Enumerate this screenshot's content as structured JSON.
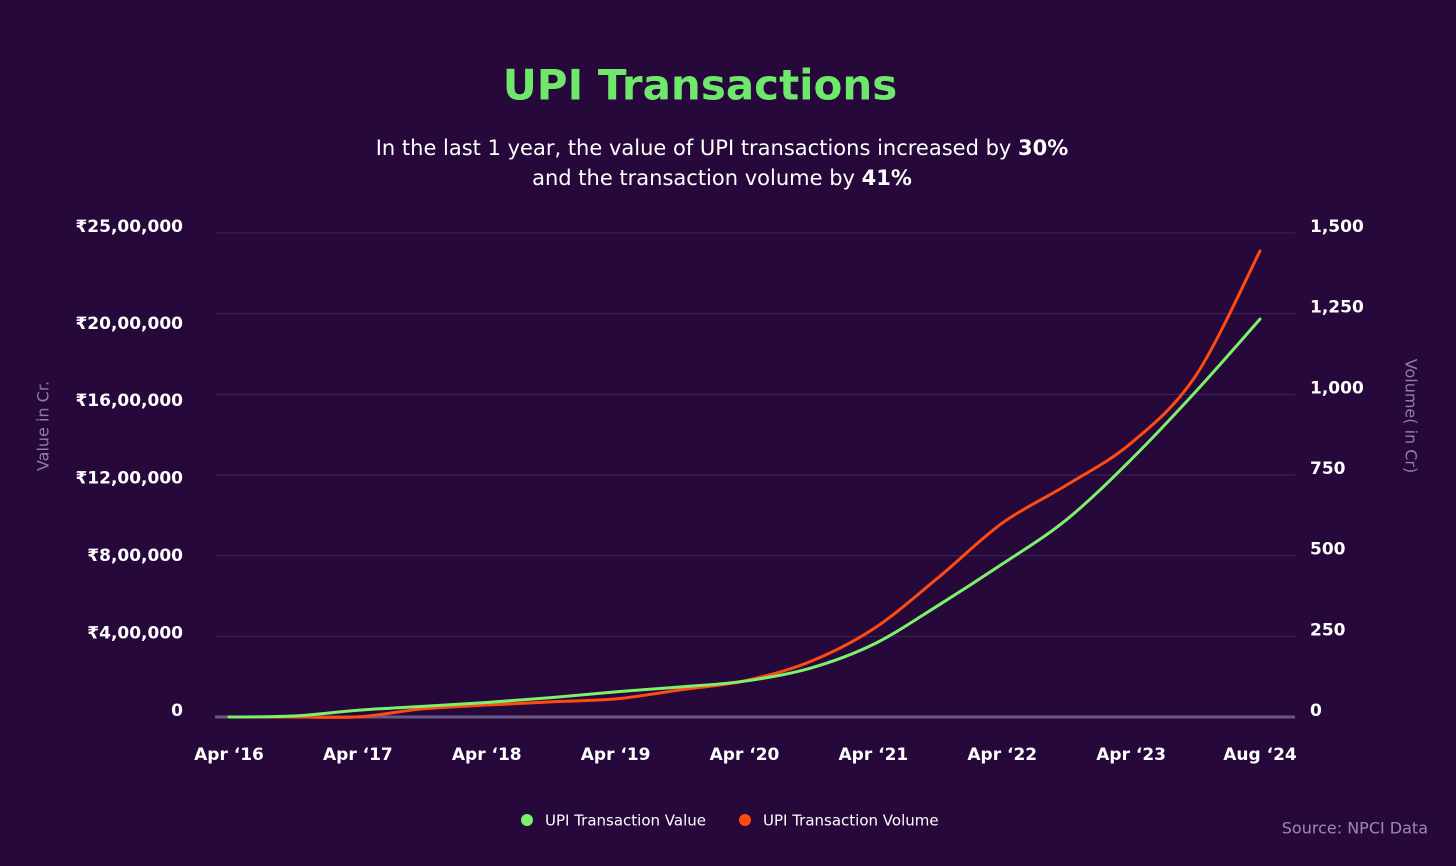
{
  "chart_data": {
    "type": "line",
    "title": "UPI Transactions",
    "subtitle": [
      "In the last 1 year, the  value of UPI  transactions increased by ",
      "30%",
      "and the transaction volume by ",
      "41%"
    ],
    "y_label": "Value in Cr.",
    "y2_label": "Volume( in Cr)",
    "source": "Source: NPCI Data",
    "categories": [
      "Apr ‘16",
      null,
      "Apr ‘17",
      null,
      "Apr ‘18",
      null,
      "Apr ‘19",
      null,
      "Apr ‘20",
      null,
      "Apr ‘21",
      null,
      "Apr ‘22",
      null,
      "Apr ‘23",
      null,
      "Aug ‘24"
    ],
    "series": [
      {
        "name": "UPI Transaction Value",
        "color": "#7cf26b",
        "axis": "y",
        "values": [
          0,
          5000,
          35000,
          55000,
          75000,
          100000,
          130000,
          155000,
          185000,
          250000,
          375000,
          575000,
          790000,
          1020000,
          1330000,
          1680000,
          2055000
        ]
      },
      {
        "name": "UPI Transaction Volume",
        "color": "#ff4b12",
        "axis": "y2",
        "values": [
          0,
          0,
          0.5,
          25,
          37,
          47,
          56,
          84,
          112,
          170,
          273,
          431,
          601,
          719,
          849,
          1057,
          1444
        ]
      }
    ],
    "ylim": [
      0,
      2500000
    ],
    "yticks": [
      0,
      {
        "value": 400000,
        "label": "₹4,00,000"
      },
      {
        "value": 800000,
        "label": "₹8,00,000"
      },
      {
        "value": 1200000,
        "label": "₹12,00,000"
      },
      {
        "value": 1600000,
        "label": "₹16,00,000"
      },
      {
        "value": 2000000,
        "label": "₹20,00,000"
      },
      {
        "value": 2500000,
        "label": "₹25,00,000"
      }
    ],
    "y2lim": [
      0,
      1500
    ],
    "y2ticks": [
      0,
      250,
      500,
      750,
      {
        "value": 1000,
        "label": "1,000"
      },
      {
        "value": 1250,
        "label": "1,250"
      },
      {
        "value": 1500,
        "label": "1,500"
      }
    ],
    "grid": true
  }
}
